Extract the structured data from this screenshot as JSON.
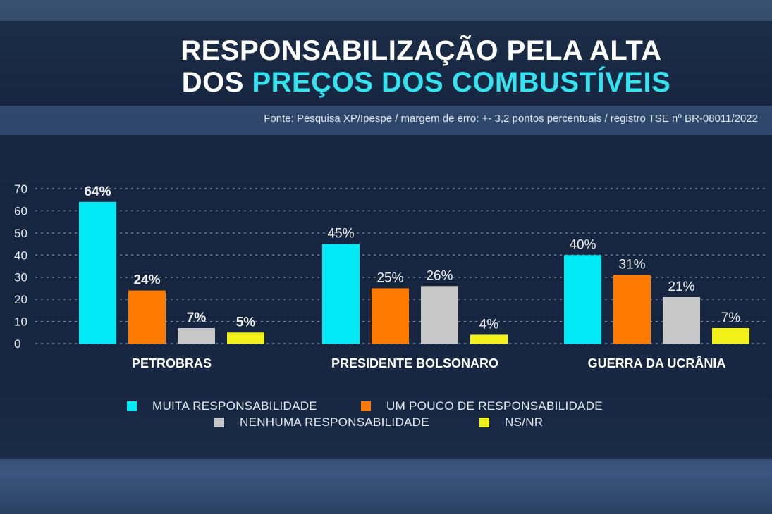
{
  "title_line1": "RESPONSABILIZAÇÃO PELA ALTA",
  "title_line2_prefix": "DOS ",
  "title_line2_highlight": "PREÇOS DOS COMBUSTÍVEIS",
  "source": "Fonte: Pesquisa XP/Ipespe / margem de erro: +- 3,2 pontos percentuais / registro TSE nº BR-08011/2022",
  "chart_data": {
    "type": "bar",
    "categories": [
      "PETROBRAS",
      "PRESIDENTE BOLSONARO",
      "GUERRA DA UCRÂNIA"
    ],
    "series": [
      {
        "name": "MUITA RESPONSABILIDADE",
        "color": "#00e9f5",
        "values": [
          64,
          45,
          40
        ]
      },
      {
        "name": "UM POUCO DE RESPONSABILIDADE",
        "color": "#ff7a00",
        "values": [
          24,
          25,
          31
        ]
      },
      {
        "name": "NENHUMA RESPONSABILIDADE",
        "color": "#c8c8c8",
        "values": [
          7,
          26,
          21
        ]
      },
      {
        "name": "NS/NR",
        "color": "#f2f21a",
        "values": [
          5,
          4,
          7
        ]
      }
    ],
    "yticks": [
      0,
      10,
      20,
      30,
      40,
      50,
      60,
      70
    ],
    "ylim": [
      0,
      70
    ],
    "grid": true,
    "grid_style": "dotted",
    "data_label_suffix": "%",
    "legend_position": "bottom"
  }
}
